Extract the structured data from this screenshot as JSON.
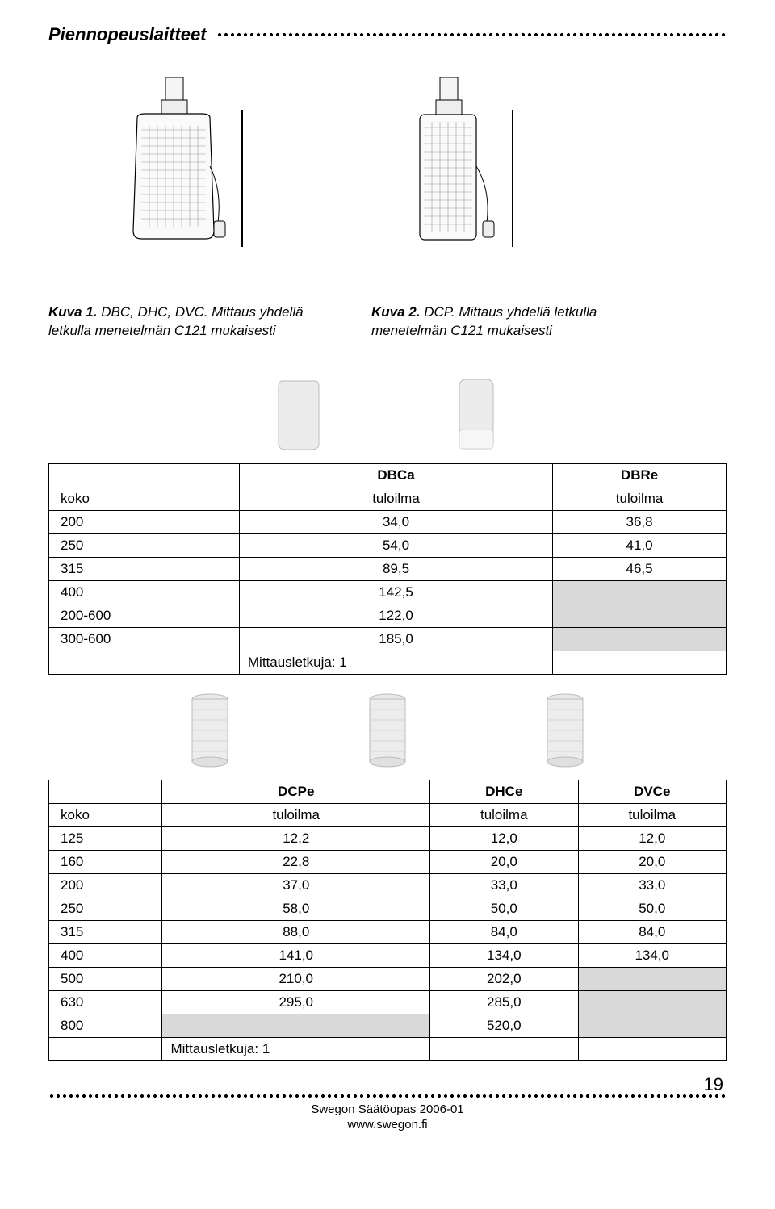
{
  "header": {
    "title": "Piennopeuslaitteet"
  },
  "captions": {
    "left_bold": "Kuva 1.",
    "left_rest": " DBC, DHC, DVC. Mittaus yhdellä letkulla menetelmän C121 mukaisesti",
    "right_bold": "Kuva 2.",
    "right_rest": " DCP. Mittaus yhdellä letkulla menetelmän C121 mukaisesti"
  },
  "table1": {
    "headers": [
      "",
      "DBCa",
      "DBRe"
    ],
    "subheaders": [
      "koko",
      "tuloilma",
      "tuloilma"
    ],
    "rows": [
      {
        "c": [
          "200",
          "34,0",
          "36,8"
        ],
        "grey": [
          false,
          false,
          false
        ]
      },
      {
        "c": [
          "250",
          "54,0",
          "41,0"
        ],
        "grey": [
          false,
          false,
          false
        ]
      },
      {
        "c": [
          "315",
          "89,5",
          "46,5"
        ],
        "grey": [
          false,
          false,
          false
        ]
      },
      {
        "c": [
          "400",
          "142,5",
          ""
        ],
        "grey": [
          false,
          false,
          true
        ]
      },
      {
        "c": [
          "200-600",
          "122,0",
          ""
        ],
        "grey": [
          false,
          false,
          true
        ]
      },
      {
        "c": [
          "300-600",
          "185,0",
          ""
        ],
        "grey": [
          false,
          false,
          true
        ]
      }
    ],
    "footer": [
      "",
      "Mittausletkuja: 1",
      ""
    ]
  },
  "table2": {
    "headers": [
      "",
      "DCPe",
      "DHCe",
      "DVCe"
    ],
    "subheaders": [
      "koko",
      "tuloilma",
      "tuloilma",
      "tuloilma"
    ],
    "rows": [
      {
        "c": [
          "125",
          "12,2",
          "12,0",
          "12,0"
        ],
        "grey": [
          false,
          false,
          false,
          false
        ]
      },
      {
        "c": [
          "160",
          "22,8",
          "20,0",
          "20,0"
        ],
        "grey": [
          false,
          false,
          false,
          false
        ]
      },
      {
        "c": [
          "200",
          "37,0",
          "33,0",
          "33,0"
        ],
        "grey": [
          false,
          false,
          false,
          false
        ]
      },
      {
        "c": [
          "250",
          "58,0",
          "50,0",
          "50,0"
        ],
        "grey": [
          false,
          false,
          false,
          false
        ]
      },
      {
        "c": [
          "315",
          "88,0",
          "84,0",
          "84,0"
        ],
        "grey": [
          false,
          false,
          false,
          false
        ]
      },
      {
        "c": [
          "400",
          "141,0",
          "134,0",
          "134,0"
        ],
        "grey": [
          false,
          false,
          false,
          false
        ]
      },
      {
        "c": [
          "500",
          "210,0",
          "202,0",
          ""
        ],
        "grey": [
          false,
          false,
          false,
          true
        ]
      },
      {
        "c": [
          "630",
          "295,0",
          "285,0",
          ""
        ],
        "grey": [
          false,
          false,
          false,
          true
        ]
      },
      {
        "c": [
          "800",
          "",
          "520,0",
          ""
        ],
        "grey": [
          false,
          true,
          false,
          true
        ]
      }
    ],
    "footer": [
      "",
      "Mittausletkuja: 1",
      "",
      ""
    ]
  },
  "footer": {
    "line1": "Swegon Säätöopas 2006-01",
    "line2": "www.swegon.fi",
    "page": "19"
  }
}
